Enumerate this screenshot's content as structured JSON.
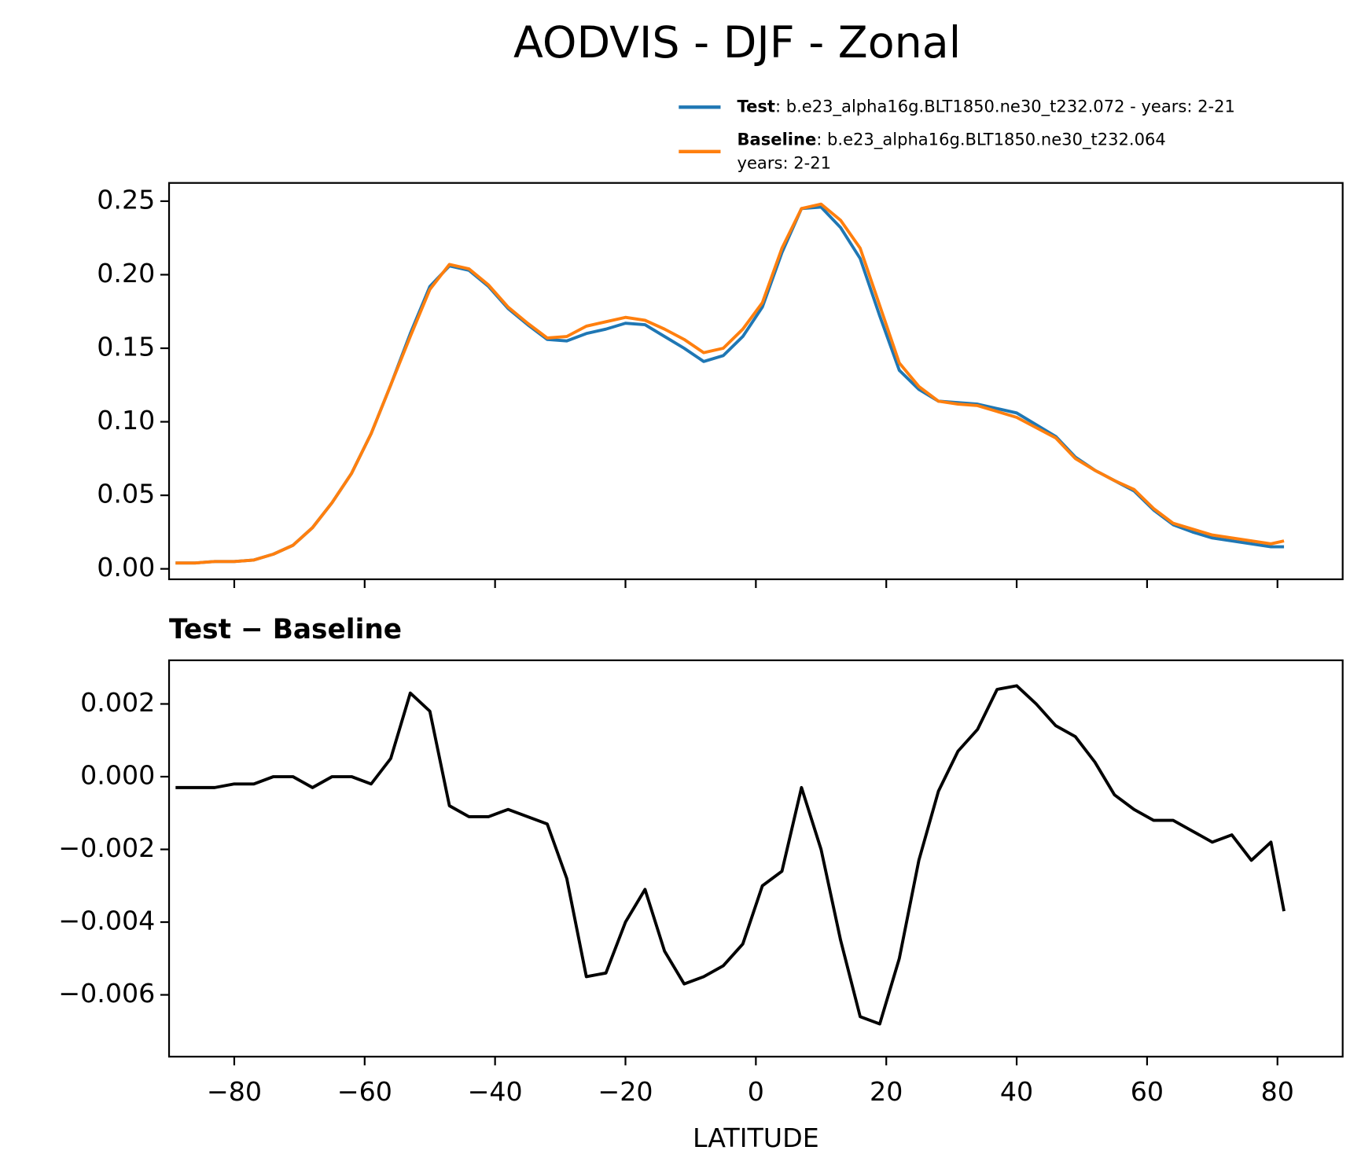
{
  "chart_data": [
    {
      "type": "line",
      "title": "AODVIS - DJF - Zonal",
      "x": [
        -89,
        -86,
        -83,
        -80,
        -77,
        -74,
        -71,
        -68,
        -65,
        -62,
        -59,
        -56,
        -53,
        -50,
        -47,
        -44,
        -41,
        -38,
        -35,
        -32,
        -29,
        -26,
        -23,
        -20,
        -17,
        -14,
        -11,
        -8,
        -5,
        -2,
        1,
        4,
        7,
        10,
        13,
        16,
        19,
        22,
        25,
        28,
        31,
        34,
        37,
        40,
        43,
        46,
        49,
        52,
        55,
        58,
        61,
        64,
        67,
        70,
        73,
        76,
        79,
        81
      ],
      "series": [
        {
          "name": "Test",
          "description": [
            ": b.e23_alpha16g.BLT1850.ne30_t232.072 - years: 2-21"
          ],
          "color": "#1f77b4",
          "values": [
            0.004,
            0.004,
            0.005,
            0.005,
            0.006,
            0.01,
            0.016,
            0.028,
            0.045,
            0.065,
            0.092,
            0.125,
            0.16,
            0.192,
            0.206,
            0.203,
            0.192,
            0.177,
            0.166,
            0.156,
            0.155,
            0.16,
            0.163,
            0.167,
            0.166,
            0.158,
            0.15,
            0.141,
            0.145,
            0.158,
            0.178,
            0.215,
            0.245,
            0.246,
            0.232,
            0.211,
            0.172,
            0.135,
            0.122,
            0.114,
            0.113,
            0.112,
            0.109,
            0.106,
            0.098,
            0.09,
            0.076,
            0.067,
            0.06,
            0.053,
            0.04,
            0.03,
            0.025,
            0.021,
            0.019,
            0.017,
            0.015,
            0.015
          ]
        },
        {
          "name": "Baseline",
          "description": [
            ": b.e23_alpha16g.BLT1850.ne30_t232.064",
            "years: 2-21"
          ],
          "color": "#ff7f0e",
          "values": [
            0.004,
            0.004,
            0.005,
            0.005,
            0.006,
            0.01,
            0.016,
            0.028,
            0.045,
            0.065,
            0.092,
            0.125,
            0.158,
            0.19,
            0.207,
            0.204,
            0.193,
            0.178,
            0.167,
            0.157,
            0.158,
            0.165,
            0.168,
            0.171,
            0.169,
            0.163,
            0.156,
            0.147,
            0.15,
            0.163,
            0.181,
            0.218,
            0.245,
            0.248,
            0.237,
            0.218,
            0.179,
            0.14,
            0.124,
            0.114,
            0.112,
            0.111,
            0.107,
            0.103,
            0.096,
            0.089,
            0.075,
            0.067,
            0.06,
            0.054,
            0.041,
            0.031,
            0.027,
            0.023,
            0.021,
            0.019,
            0.017,
            0.019
          ]
        }
      ],
      "xlim": [
        -90,
        90
      ],
      "xticks": [
        -80,
        -60,
        -40,
        -20,
        0,
        20,
        40,
        60,
        80
      ],
      "xticklabels": false,
      "ylim": [
        -0.0071,
        0.2624
      ],
      "yticks": [
        {
          "value": 0,
          "label": "0.00"
        },
        0.05,
        {
          "value": 0.1,
          "label": "0.10"
        },
        0.15,
        {
          "value": 0.2,
          "label": "0.20"
        },
        0.25
      ]
    },
    {
      "type": "line",
      "title": "Test − Baseline",
      "xlabel": "LATITUDE",
      "x": [
        -89,
        -86,
        -83,
        -80,
        -77,
        -74,
        -71,
        -68,
        -65,
        -62,
        -59,
        -56,
        -53,
        -50,
        -47,
        -44,
        -41,
        -38,
        -35,
        -32,
        -29,
        -26,
        -23,
        -20,
        -17,
        -14,
        -11,
        -8,
        -5,
        -2,
        1,
        4,
        7,
        10,
        13,
        16,
        19,
        22,
        25,
        28,
        31,
        34,
        37,
        40,
        43,
        46,
        49,
        52,
        55,
        58,
        61,
        64,
        67,
        70,
        73,
        76,
        79,
        81
      ],
      "series": [
        {
          "color": "#000000",
          "values": [
            -0.0003,
            -0.0003,
            -0.0003,
            -0.0002,
            -0.0002,
            0.0,
            0.0,
            -0.0003,
            0.0,
            0.0,
            -0.0002,
            0.0005,
            0.0023,
            0.0018,
            -0.0008,
            -0.0011,
            -0.0011,
            -0.0009,
            -0.0011,
            -0.0013,
            -0.0028,
            -0.0055,
            -0.0054,
            -0.004,
            -0.0031,
            -0.0048,
            -0.0057,
            -0.0055,
            -0.0052,
            -0.0046,
            -0.003,
            -0.0026,
            -0.0003,
            -0.002,
            -0.0045,
            -0.0066,
            -0.0068,
            -0.005,
            -0.0023,
            -0.0004,
            0.0007,
            0.0013,
            0.0024,
            0.0025,
            0.002,
            0.0014,
            0.0011,
            0.0004,
            -0.0005,
            -0.0009,
            -0.0012,
            -0.0012,
            -0.0015,
            -0.0018,
            -0.0016,
            -0.0023,
            -0.0018,
            -0.0037
          ]
        }
      ],
      "xlim": [
        -90,
        90
      ],
      "xticks": [
        {
          "value": -80,
          "label": "−80"
        },
        {
          "value": -60,
          "label": "−60"
        },
        {
          "value": -40,
          "label": "−40"
        },
        {
          "value": -20,
          "label": "−20"
        },
        0,
        20,
        40,
        60,
        80
      ],
      "xticklabels": true,
      "ylim": [
        -0.0077,
        0.0032
      ],
      "yticks": [
        {
          "value": -0.006,
          "label": "−0.006"
        },
        {
          "value": -0.004,
          "label": "−0.004"
        },
        {
          "value": -0.002,
          "label": "−0.002"
        },
        {
          "value": 0,
          "label": "0.000"
        },
        0.002
      ]
    }
  ]
}
